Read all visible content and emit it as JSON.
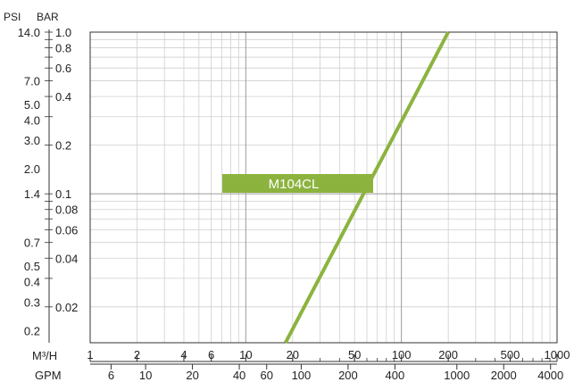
{
  "chart_data": {
    "type": "line",
    "x_scale": "log",
    "y_scale": "log",
    "grid": true,
    "left_axis_units": {
      "outer": "PSI",
      "inner": "BAR"
    },
    "bottom_axis_units": {
      "upper": "M³/H",
      "lower": "GPM"
    },
    "xlim": [
      1,
      1000
    ],
    "ylim": [
      0.012,
      1.0
    ],
    "x_ticks_m3h": [
      "1",
      "2",
      "4",
      "6",
      "10",
      "20",
      "50",
      "100",
      "200",
      "500",
      "1000"
    ],
    "x_ticks_gpm": [
      "6",
      "10",
      "20",
      "40",
      "60",
      "100",
      "200",
      "400",
      "1000",
      "2000",
      "4000"
    ],
    "y_ticks_bar": [
      "1.0",
      "0.8",
      "0.6",
      "0.4",
      "0.2",
      "0.1",
      "0.08",
      "0.06",
      "0.04",
      "0.02"
    ],
    "y_ticks_psi": [
      "14.0",
      "7.0",
      "5.0",
      "4.0",
      "3.0",
      "2.0",
      "1.4",
      "0.7",
      "0.5",
      "0.4",
      "0.3",
      "0.2"
    ],
    "series": [
      {
        "name": "M104CL",
        "color": "#8cb33e",
        "x": [
          18,
          200
        ],
        "y": [
          0.012,
          1.0
        ]
      }
    ],
    "label_box": {
      "text": "M104CL",
      "color": "#8cb33e"
    }
  }
}
